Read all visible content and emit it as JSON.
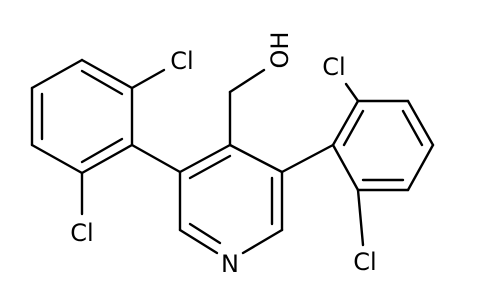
{
  "atom_labels": [
    "Cl",
    "Cl",
    "OH",
    "Cl",
    "Cl",
    "N"
  ]
}
